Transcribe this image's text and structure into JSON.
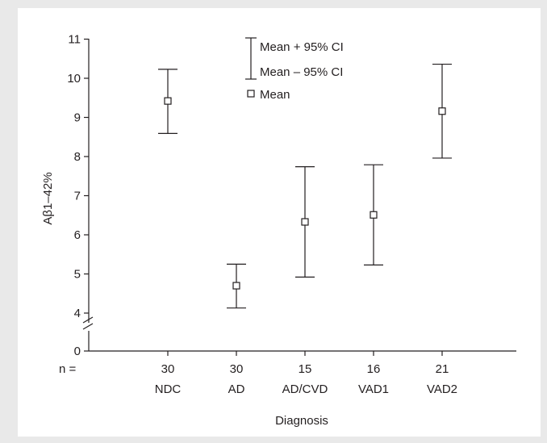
{
  "chart_data": {
    "type": "error-bar",
    "ylabel": "Aβ1–42%",
    "xlabel": "Diagnosis",
    "n_label": "n =",
    "y_ticks": [
      0,
      4,
      5,
      6,
      7,
      8,
      9,
      10,
      11
    ],
    "y_axis_break": "between 0 and 4",
    "legend": {
      "upper": "Mean + 95% CI",
      "lower": "Mean – 95% CI",
      "mean": "Mean",
      "position": "top-center"
    },
    "groups": [
      {
        "category": "NDC",
        "n": "30",
        "mean": 9.42,
        "upper": 10.23,
        "lower": 8.59
      },
      {
        "category": "AD",
        "n": "30",
        "mean": 4.7,
        "upper": 5.25,
        "lower": 4.13
      },
      {
        "category": "AD/CVD",
        "n": "15",
        "mean": 6.33,
        "upper": 7.74,
        "lower": 4.92
      },
      {
        "category": "VAD1",
        "n": "16",
        "mean": 6.51,
        "upper": 7.79,
        "lower": 5.23
      },
      {
        "category": "VAD2",
        "n": "21",
        "mean": 9.16,
        "upper": 10.36,
        "lower": 7.96
      }
    ]
  }
}
